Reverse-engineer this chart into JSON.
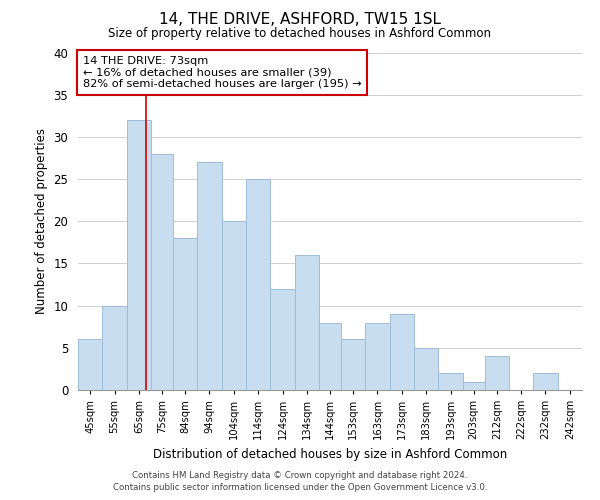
{
  "title": "14, THE DRIVE, ASHFORD, TW15 1SL",
  "subtitle": "Size of property relative to detached houses in Ashford Common",
  "xlabel": "Distribution of detached houses by size in Ashford Common",
  "ylabel": "Number of detached properties",
  "footer_line1": "Contains HM Land Registry data © Crown copyright and database right 2024.",
  "footer_line2": "Contains public sector information licensed under the Open Government Licence v3.0.",
  "annotation_line1": "14 THE DRIVE: 73sqm",
  "annotation_line2": "← 16% of detached houses are smaller (39)",
  "annotation_line3": "82% of semi-detached houses are larger (195) →",
  "bar_labels": [
    "45sqm",
    "55sqm",
    "65sqm",
    "75sqm",
    "84sqm",
    "94sqm",
    "104sqm",
    "114sqm",
    "124sqm",
    "134sqm",
    "144sqm",
    "153sqm",
    "163sqm",
    "173sqm",
    "183sqm",
    "193sqm",
    "203sqm",
    "212sqm",
    "222sqm",
    "232sqm",
    "242sqm"
  ],
  "bar_values": [
    6,
    10,
    32,
    28,
    18,
    27,
    20,
    25,
    12,
    16,
    8,
    6,
    8,
    9,
    5,
    2,
    1,
    4,
    0,
    2,
    0
  ],
  "bar_color": "#c9ddf0",
  "bar_edge_color": "#a0bcd8",
  "redline_x": 73,
  "bin_edges": [
    45,
    55,
    65,
    75,
    84,
    94,
    104,
    114,
    124,
    134,
    144,
    153,
    163,
    173,
    183,
    193,
    203,
    212,
    222,
    232,
    242,
    252
  ],
  "ylim": [
    0,
    40
  ],
  "yticks": [
    0,
    5,
    10,
    15,
    20,
    25,
    30,
    35,
    40
  ],
  "grid_color": "#d0d0d0",
  "background_color": "#ffffff",
  "annotation_box_color": "#ffffff",
  "annotation_box_edge": "#cc0000",
  "redline_color": "#cc0000"
}
